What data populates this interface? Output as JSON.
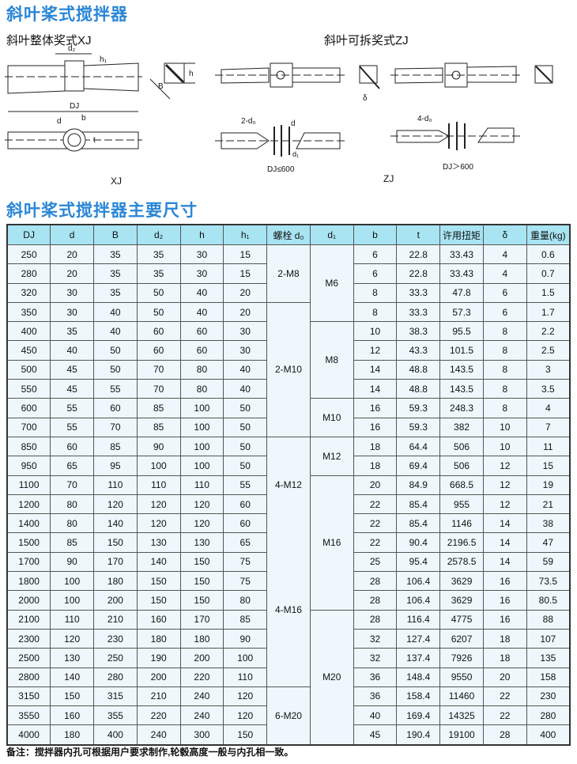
{
  "title": "斜叶桨式搅拌器",
  "xj_heading": "斜叶整体奖式XJ",
  "zj_heading": "斜叶可拆奖式ZJ",
  "diagram_labels": {
    "d2": "d₂",
    "h1": "h₁",
    "h": "h",
    "B": "B",
    "DJ": "DJ",
    "d": "d",
    "b": "b",
    "t": "t",
    "delta": "δ",
    "two_d0": "2-d₀",
    "four_d0": "4-d₀",
    "d_zj": "d",
    "d1": "d₁",
    "dj_le": "DJ≤600",
    "dj_gt": "DJ＞600",
    "xj": "XJ",
    "zj": "ZJ"
  },
  "table_title": "斜叶桨式搅拌器主要尺寸",
  "headers": [
    "DJ",
    "d",
    "B",
    "d₂",
    "h",
    "h₁",
    "螺栓 d₀",
    "d₁",
    "b",
    "t",
    "许用扭矩",
    "δ",
    "重量(kg)"
  ],
  "bolt_groups": [
    {
      "label": "2-M8",
      "span": 3
    },
    {
      "label": "2-M10",
      "span": 7
    },
    {
      "label": "4-M12",
      "span": 5
    },
    {
      "label": "4-M16",
      "span": 8
    },
    {
      "label": "6-M20",
      "span": 3
    }
  ],
  "d1_groups": [
    {
      "label": "M6",
      "span": 4
    },
    {
      "label": "M8",
      "span": 4
    },
    {
      "label": "M10",
      "span": 2
    },
    {
      "label": "M12",
      "span": 2
    },
    {
      "label": "M16",
      "span": 7
    },
    {
      "label": "M20",
      "span": 7
    }
  ],
  "rows": [
    [
      "250",
      "20",
      "35",
      "35",
      "30",
      "15",
      "6",
      "22.8",
      "33.43",
      "4",
      "0.6"
    ],
    [
      "280",
      "20",
      "35",
      "35",
      "30",
      "15",
      "6",
      "22.8",
      "33.43",
      "4",
      "0.7"
    ],
    [
      "320",
      "30",
      "35",
      "50",
      "40",
      "20",
      "8",
      "33.3",
      "47.8",
      "6",
      "1.5"
    ],
    [
      "350",
      "30",
      "40",
      "50",
      "40",
      "20",
      "8",
      "33.3",
      "57.3",
      "6",
      "1.7"
    ],
    [
      "400",
      "35",
      "40",
      "60",
      "60",
      "30",
      "10",
      "38.3",
      "95.5",
      "8",
      "2.2"
    ],
    [
      "450",
      "40",
      "50",
      "60",
      "60",
      "30",
      "12",
      "43.3",
      "101.5",
      "8",
      "2.5"
    ],
    [
      "500",
      "45",
      "50",
      "70",
      "80",
      "40",
      "14",
      "48.8",
      "143.5",
      "8",
      "3"
    ],
    [
      "550",
      "45",
      "55",
      "70",
      "80",
      "40",
      "14",
      "48.8",
      "143.5",
      "8",
      "3.5"
    ],
    [
      "600",
      "55",
      "60",
      "85",
      "100",
      "50",
      "16",
      "59.3",
      "248.3",
      "8",
      "4"
    ],
    [
      "700",
      "55",
      "70",
      "85",
      "100",
      "50",
      "16",
      "59.3",
      "382",
      "10",
      "7"
    ],
    [
      "850",
      "60",
      "85",
      "90",
      "100",
      "50",
      "18",
      "64.4",
      "506",
      "10",
      "11"
    ],
    [
      "950",
      "65",
      "95",
      "100",
      "100",
      "50",
      "18",
      "69.4",
      "506",
      "12",
      "15"
    ],
    [
      "1100",
      "70",
      "110",
      "110",
      "110",
      "55",
      "20",
      "84.9",
      "668.5",
      "12",
      "19"
    ],
    [
      "1200",
      "80",
      "120",
      "120",
      "120",
      "60",
      "22",
      "85.4",
      "955",
      "12",
      "21"
    ],
    [
      "1400",
      "80",
      "140",
      "120",
      "120",
      "60",
      "22",
      "85.4",
      "1146",
      "14",
      "38"
    ],
    [
      "1500",
      "85",
      "150",
      "130",
      "130",
      "65",
      "22",
      "90.4",
      "2196.5",
      "14",
      "47"
    ],
    [
      "1700",
      "90",
      "170",
      "140",
      "150",
      "75",
      "25",
      "95.4",
      "2578.5",
      "14",
      "59"
    ],
    [
      "1800",
      "100",
      "180",
      "150",
      "150",
      "75",
      "28",
      "106.4",
      "3629",
      "16",
      "73.5"
    ],
    [
      "2000",
      "100",
      "200",
      "150",
      "150",
      "80",
      "28",
      "106.4",
      "3629",
      "16",
      "80.5"
    ],
    [
      "2100",
      "110",
      "210",
      "160",
      "170",
      "85",
      "28",
      "116.4",
      "4775",
      "16",
      "88"
    ],
    [
      "2300",
      "120",
      "230",
      "180",
      "180",
      "90",
      "32",
      "127.4",
      "6207",
      "18",
      "107"
    ],
    [
      "2500",
      "130",
      "250",
      "190",
      "200",
      "100",
      "32",
      "137.4",
      "7926",
      "18",
      "135"
    ],
    [
      "2800",
      "140",
      "280",
      "200",
      "220",
      "110",
      "36",
      "148.4",
      "9550",
      "20",
      "158"
    ],
    [
      "3150",
      "150",
      "315",
      "210",
      "240",
      "120",
      "36",
      "158.4",
      "11460",
      "22",
      "230"
    ],
    [
      "3550",
      "160",
      "355",
      "220",
      "240",
      "120",
      "40",
      "169.4",
      "14325",
      "22",
      "280"
    ],
    [
      "4000",
      "180",
      "400",
      "240",
      "300",
      "150",
      "45",
      "190.4",
      "19100",
      "28",
      "400"
    ]
  ],
  "note": "备注：搅拌器内孔可根据用户要求制作,轮毂高度一般与内孔相一致。"
}
